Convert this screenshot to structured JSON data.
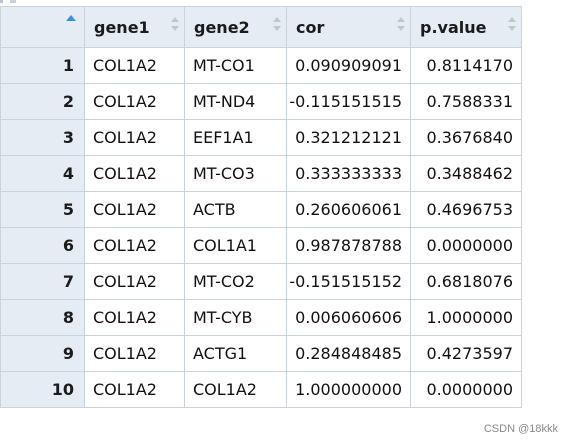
{
  "columns": [
    {
      "key": "index",
      "label": ""
    },
    {
      "key": "gene1",
      "label": "gene1"
    },
    {
      "key": "gene2",
      "label": "gene2"
    },
    {
      "key": "cor",
      "label": "cor"
    },
    {
      "key": "pvalue",
      "label": "p.value"
    }
  ],
  "sort": {
    "column": "index",
    "direction": "ascending",
    "active_color": "#3d8fe0"
  },
  "rows": [
    {
      "index": "1",
      "gene1": "COL1A2",
      "gene2": "MT-CO1",
      "cor": "0.090909091",
      "pvalue": "0.8114170"
    },
    {
      "index": "2",
      "gene1": "COL1A2",
      "gene2": "MT-ND4",
      "cor": "-0.115151515",
      "pvalue": "0.7588331"
    },
    {
      "index": "3",
      "gene1": "COL1A2",
      "gene2": "EEF1A1",
      "cor": "0.321212121",
      "pvalue": "0.3676840"
    },
    {
      "index": "4",
      "gene1": "COL1A2",
      "gene2": "MT-CO3",
      "cor": "0.333333333",
      "pvalue": "0.3488462"
    },
    {
      "index": "5",
      "gene1": "COL1A2",
      "gene2": "ACTB",
      "cor": "0.260606061",
      "pvalue": "0.4696753"
    },
    {
      "index": "6",
      "gene1": "COL1A2",
      "gene2": "COL1A1",
      "cor": "0.987878788",
      "pvalue": "0.0000000"
    },
    {
      "index": "7",
      "gene1": "COL1A2",
      "gene2": "MT-CO2",
      "cor": "-0.151515152",
      "pvalue": "0.6818076"
    },
    {
      "index": "8",
      "gene1": "COL1A2",
      "gene2": "MT-CYB",
      "cor": "0.006060606",
      "pvalue": "1.0000000"
    },
    {
      "index": "9",
      "gene1": "COL1A2",
      "gene2": "ACTG1",
      "cor": "0.284848485",
      "pvalue": "0.4273597"
    },
    {
      "index": "10",
      "gene1": "COL1A2",
      "gene2": "COL1A2",
      "cor": "1.000000000",
      "pvalue": "0.0000000"
    }
  ],
  "watermark": "CSDN @18kkk"
}
